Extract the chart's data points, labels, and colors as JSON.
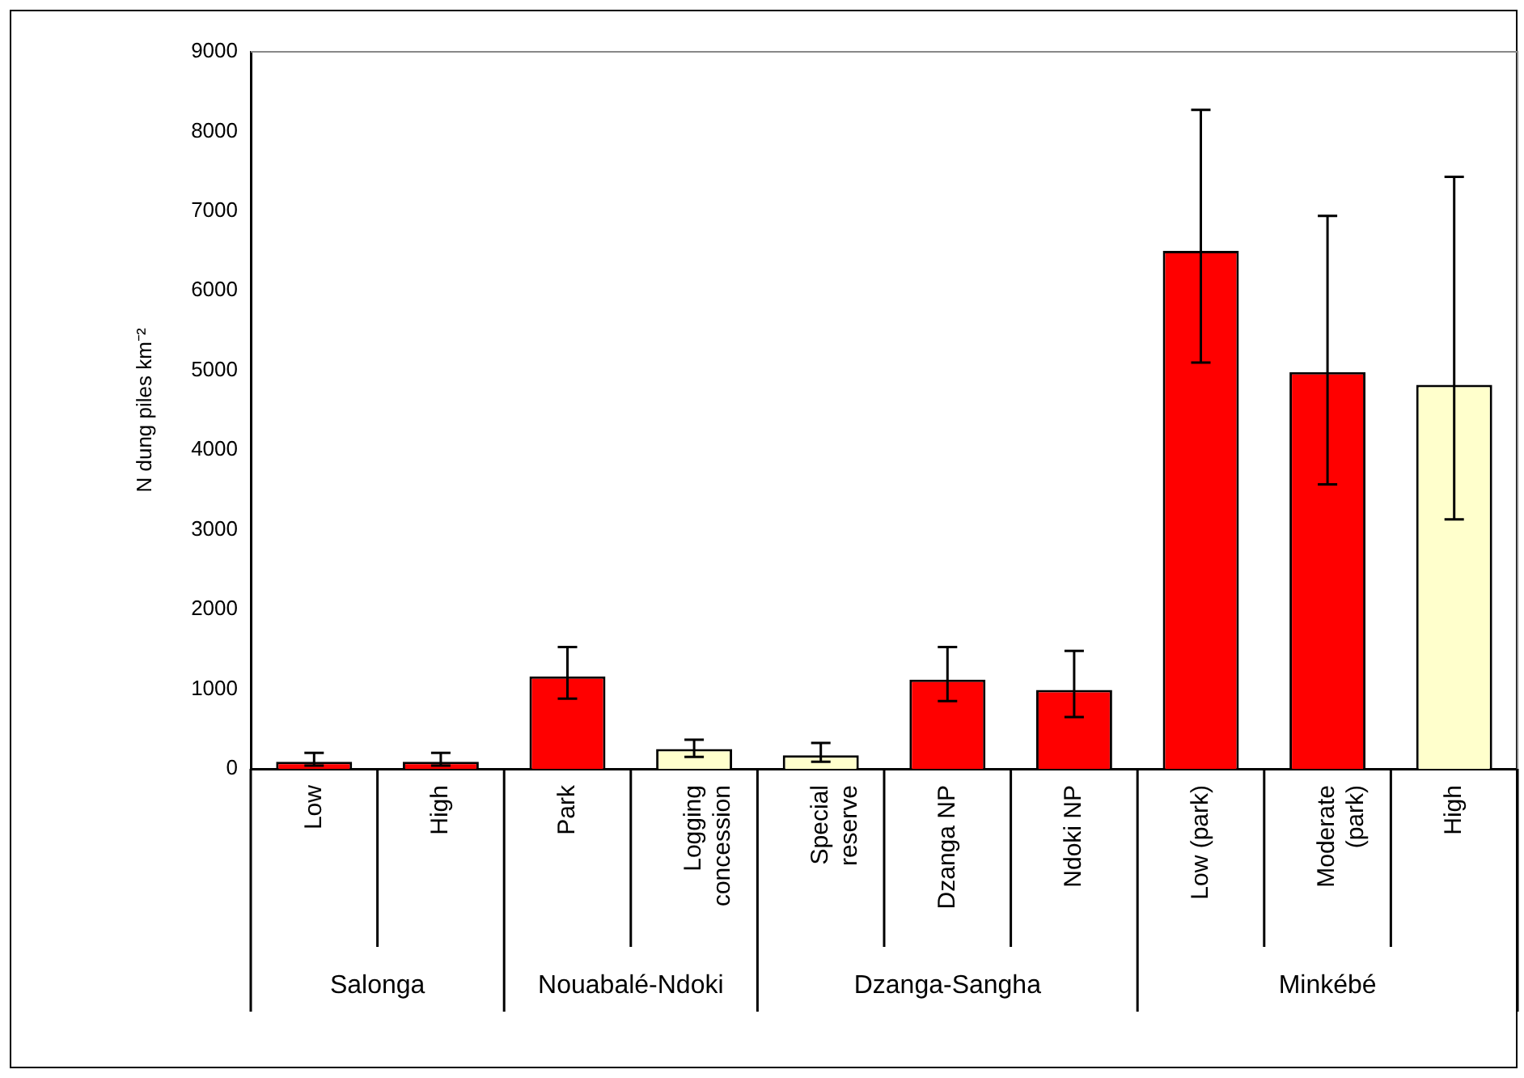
{
  "chart_data": {
    "type": "bar",
    "ylabel": "N dung piles km⁻²",
    "categories": [
      "Low",
      "High",
      "Park",
      "Logging concession",
      "Special reserve",
      "Dzanga NP",
      "Ndoki NP",
      "Low (park)",
      "Moderate (park)",
      "High"
    ],
    "values": [
      90,
      90,
      1160,
      250,
      170,
      1120,
      990,
      6500,
      4980,
      4820
    ],
    "colors": [
      "#ff0000",
      "#ff0000",
      "#ff0000",
      "#ffffcc",
      "#ffffcc",
      "#ff0000",
      "#ff0000",
      "#ff0000",
      "#ff0000",
      "#ffffcc"
    ],
    "errors": [
      [
        40,
        200
      ],
      [
        40,
        200
      ],
      [
        880,
        1530
      ],
      [
        150,
        365
      ],
      [
        90,
        325
      ],
      [
        850,
        1530
      ],
      [
        650,
        1480
      ],
      [
        5100,
        8270
      ],
      [
        3570,
        6940
      ],
      [
        3130,
        7430
      ]
    ],
    "ylim": [
      0,
      9000
    ],
    "yticks": [
      0,
      1000,
      2000,
      3000,
      4000,
      5000,
      6000,
      7000,
      8000,
      9000
    ],
    "grid": false,
    "legend": false,
    "annotations": [
      "Salonga",
      "Nouabalé-Ndoki",
      "Dzanga-Sangha",
      "Minkébé"
    ]
  }
}
